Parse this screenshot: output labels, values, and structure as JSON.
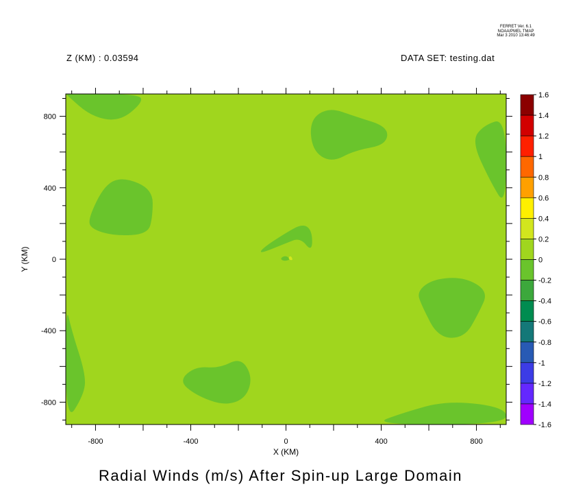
{
  "header": {
    "z_label": "Z (KM) : 0.03594",
    "dataset_label": "DATA SET: testing.dat",
    "stamp_lines": [
      "FERRET Ver. 6.1",
      "NOAA/PMEL TMAP",
      "Mar  3 2010 13:46:49"
    ]
  },
  "chart_data": {
    "type": "contour",
    "title": "Radial Winds (m/s) After Spin-up Large Domain",
    "xlabel": "X (KM)",
    "ylabel": "Y (KM)",
    "xlim": [
      -925,
      925
    ],
    "ylim": [
      -925,
      925
    ],
    "x_ticks": [
      -800,
      -400,
      0,
      400,
      800
    ],
    "y_ticks": [
      800,
      400,
      0,
      -400,
      -800
    ],
    "x_tick_labels": [
      "-800",
      "-400",
      "0",
      "400",
      "800"
    ],
    "y_tick_labels": [
      "800",
      "400",
      "0",
      "-400",
      "-800"
    ],
    "background_level": "0 to 0.2",
    "colorbar": {
      "levels": [
        1.6,
        1.4,
        1.2,
        1,
        0.8,
        0.6,
        0.4,
        0.2,
        0,
        -0.2,
        -0.4,
        -0.6,
        -0.8,
        -1,
        -1.2,
        -1.4,
        -1.6
      ],
      "level_labels": [
        "1.6",
        "1.4",
        "1.2",
        "1",
        "0.8",
        "0.6",
        "0.4",
        "0.2",
        "0",
        "-0.2",
        "-0.4",
        "-0.6",
        "-0.8",
        "-1",
        "-1.2",
        "-1.4",
        "-1.6"
      ],
      "colors": [
        "#8b0000",
        "#d20000",
        "#ff2000",
        "#ff6800",
        "#ffa000",
        "#fff000",
        "#d2e61e",
        "#a0d61e",
        "#6ac42c",
        "#3ca83c",
        "#008c50",
        "#147878",
        "#285ab4",
        "#3c3ce6",
        "#6428ff",
        "#a000ff"
      ]
    },
    "regions_below_zero": [
      {
        "name": "top-left edge",
        "points": [
          [
            -925,
            925
          ],
          [
            -620,
            925
          ],
          [
            -600,
            880
          ],
          [
            -700,
            770
          ],
          [
            -820,
            800
          ],
          [
            -925,
            925
          ]
        ]
      },
      {
        "name": "upper-left blob",
        "points": [
          [
            -830,
            230
          ],
          [
            -760,
            420
          ],
          [
            -680,
            460
          ],
          [
            -560,
            390
          ],
          [
            -560,
            240
          ],
          [
            -580,
            140
          ],
          [
            -720,
            130
          ],
          [
            -820,
            170
          ]
        ]
      },
      {
        "name": "upper-right blob",
        "points": [
          [
            100,
            780
          ],
          [
            180,
            850
          ],
          [
            290,
            800
          ],
          [
            430,
            740
          ],
          [
            420,
            640
          ],
          [
            290,
            610
          ],
          [
            190,
            540
          ],
          [
            110,
            610
          ]
        ]
      },
      {
        "name": "right edge",
        "points": [
          [
            925,
            790
          ],
          [
            925,
            290
          ],
          [
            860,
            430
          ],
          [
            780,
            660
          ],
          [
            830,
            750
          ]
        ]
      },
      {
        "name": "center crescent",
        "points": [
          [
            -100,
            60
          ],
          [
            -10,
            140
          ],
          [
            70,
            200
          ],
          [
            110,
            160
          ],
          [
            110,
            40
          ],
          [
            60,
            120
          ],
          [
            0,
            90
          ],
          [
            -110,
            30
          ]
        ]
      },
      {
        "name": "center dot",
        "points": [
          [
            -20,
            10
          ],
          [
            0,
            20
          ],
          [
            20,
            0
          ],
          [
            0,
            -10
          ],
          [
            -20,
            -5
          ]
        ]
      },
      {
        "name": "lower-right blob",
        "points": [
          [
            550,
            -180
          ],
          [
            620,
            -110
          ],
          [
            750,
            -100
          ],
          [
            850,
            -180
          ],
          [
            810,
            -300
          ],
          [
            750,
            -440
          ],
          [
            640,
            -440
          ],
          [
            570,
            -260
          ]
        ]
      },
      {
        "name": "left edge",
        "points": [
          [
            -925,
            -250
          ],
          [
            -900,
            -400
          ],
          [
            -840,
            -650
          ],
          [
            -850,
            -760
          ],
          [
            -925,
            -920
          ]
        ]
      },
      {
        "name": "lower-center blob",
        "points": [
          [
            -450,
            -680
          ],
          [
            -380,
            -600
          ],
          [
            -280,
            -610
          ],
          [
            -190,
            -550
          ],
          [
            -140,
            -660
          ],
          [
            -170,
            -780
          ],
          [
            -260,
            -820
          ],
          [
            -380,
            -760
          ]
        ]
      },
      {
        "name": "bottom-right edge",
        "points": [
          [
            360,
            -925
          ],
          [
            490,
            -860
          ],
          [
            680,
            -790
          ],
          [
            925,
            -830
          ],
          [
            925,
            -925
          ]
        ]
      }
    ],
    "regions_above_0_2": [
      {
        "name": "small positive spot",
        "points": [
          [
            10,
            10
          ],
          [
            20,
            20
          ],
          [
            30,
            -5
          ],
          [
            15,
            -5
          ]
        ]
      }
    ]
  }
}
